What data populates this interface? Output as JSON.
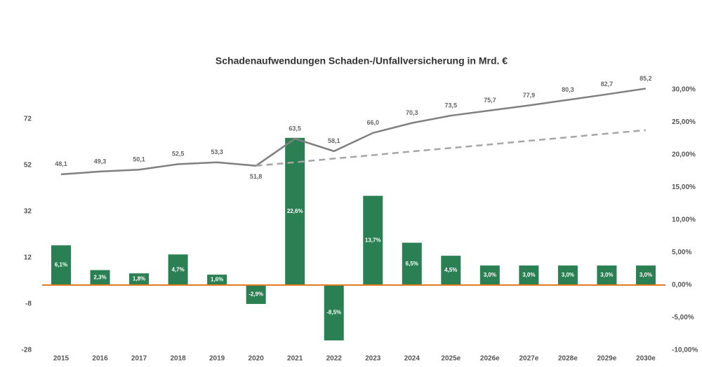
{
  "chart_data": {
    "type": "bar-line",
    "title": "Schadenaufwendungen Schaden-/Unfallversicherung in Mrd. €",
    "categories": [
      "2015",
      "2016",
      "2017",
      "2018",
      "2019",
      "2020",
      "2021",
      "2022",
      "2023",
      "2024",
      "2025e",
      "2026e",
      "2027e",
      "2028e",
      "2029e",
      "2030e"
    ],
    "series": [
      {
        "type": "bar",
        "axis": "y2",
        "color": "#2a8052",
        "values": [
          6.1,
          2.3,
          1.8,
          4.7,
          1.6,
          -2.9,
          22.6,
          -8.5,
          13.7,
          6.5,
          4.5,
          3.0,
          3.0,
          3.0,
          3.0,
          3.0
        ],
        "value_labels": [
          "6,1%",
          "2,3%",
          "1,8%",
          "4,7%",
          "1,6%",
          "-2,9%",
          "22,6%",
          "-8,5%",
          "13,7%",
          "6,5%",
          "4,5%",
          "3,0%",
          "3,0%",
          "3,0%",
          "3,0%",
          "3,0%"
        ]
      },
      {
        "type": "line",
        "color": "#808080",
        "values": [
          48.1,
          49.3,
          50.1,
          52.5,
          53.3,
          51.8,
          63.5,
          58.1,
          66.0,
          70.3,
          73.5,
          75.7,
          77.9,
          80.3,
          82.7,
          85.2
        ],
        "value_labels": [
          "48,1",
          "49,3",
          "50,1",
          "52,5",
          "53,3",
          "51,8",
          "63,5",
          "58,1",
          "66,0",
          "70,3",
          "73,5",
          "75,7",
          "77,9",
          "80,3",
          "82,7",
          "85,2"
        ]
      },
      {
        "type": "line",
        "dashed": true,
        "color": "#a6a6a6",
        "values": [
          null,
          null,
          null,
          null,
          null,
          51.8,
          53.3,
          54.9,
          56.4,
          58.0,
          59.5,
          61.0,
          62.6,
          64.1,
          65.7,
          67.2
        ]
      }
    ],
    "ylim": [
      -28,
      92
    ],
    "yticks": [
      72,
      52,
      32,
      12,
      -8,
      -28
    ],
    "y2lim": [
      -10,
      30
    ],
    "y2ticks": [
      {
        "value": 30,
        "label": "30,00%"
      },
      {
        "value": 25,
        "label": "25,00%"
      },
      {
        "value": 20,
        "label": "20,00%"
      },
      {
        "value": 15,
        "label": "15,00%"
      },
      {
        "value": 10,
        "label": "10,00%"
      },
      {
        "value": 5,
        "label": "5,00%"
      },
      {
        "value": 0,
        "label": "0,00%"
      },
      {
        "value": -5,
        "label": "-5,00%"
      },
      {
        "value": -10,
        "label": "-10,00%"
      }
    ],
    "zero_line_color": "#e07b20"
  }
}
